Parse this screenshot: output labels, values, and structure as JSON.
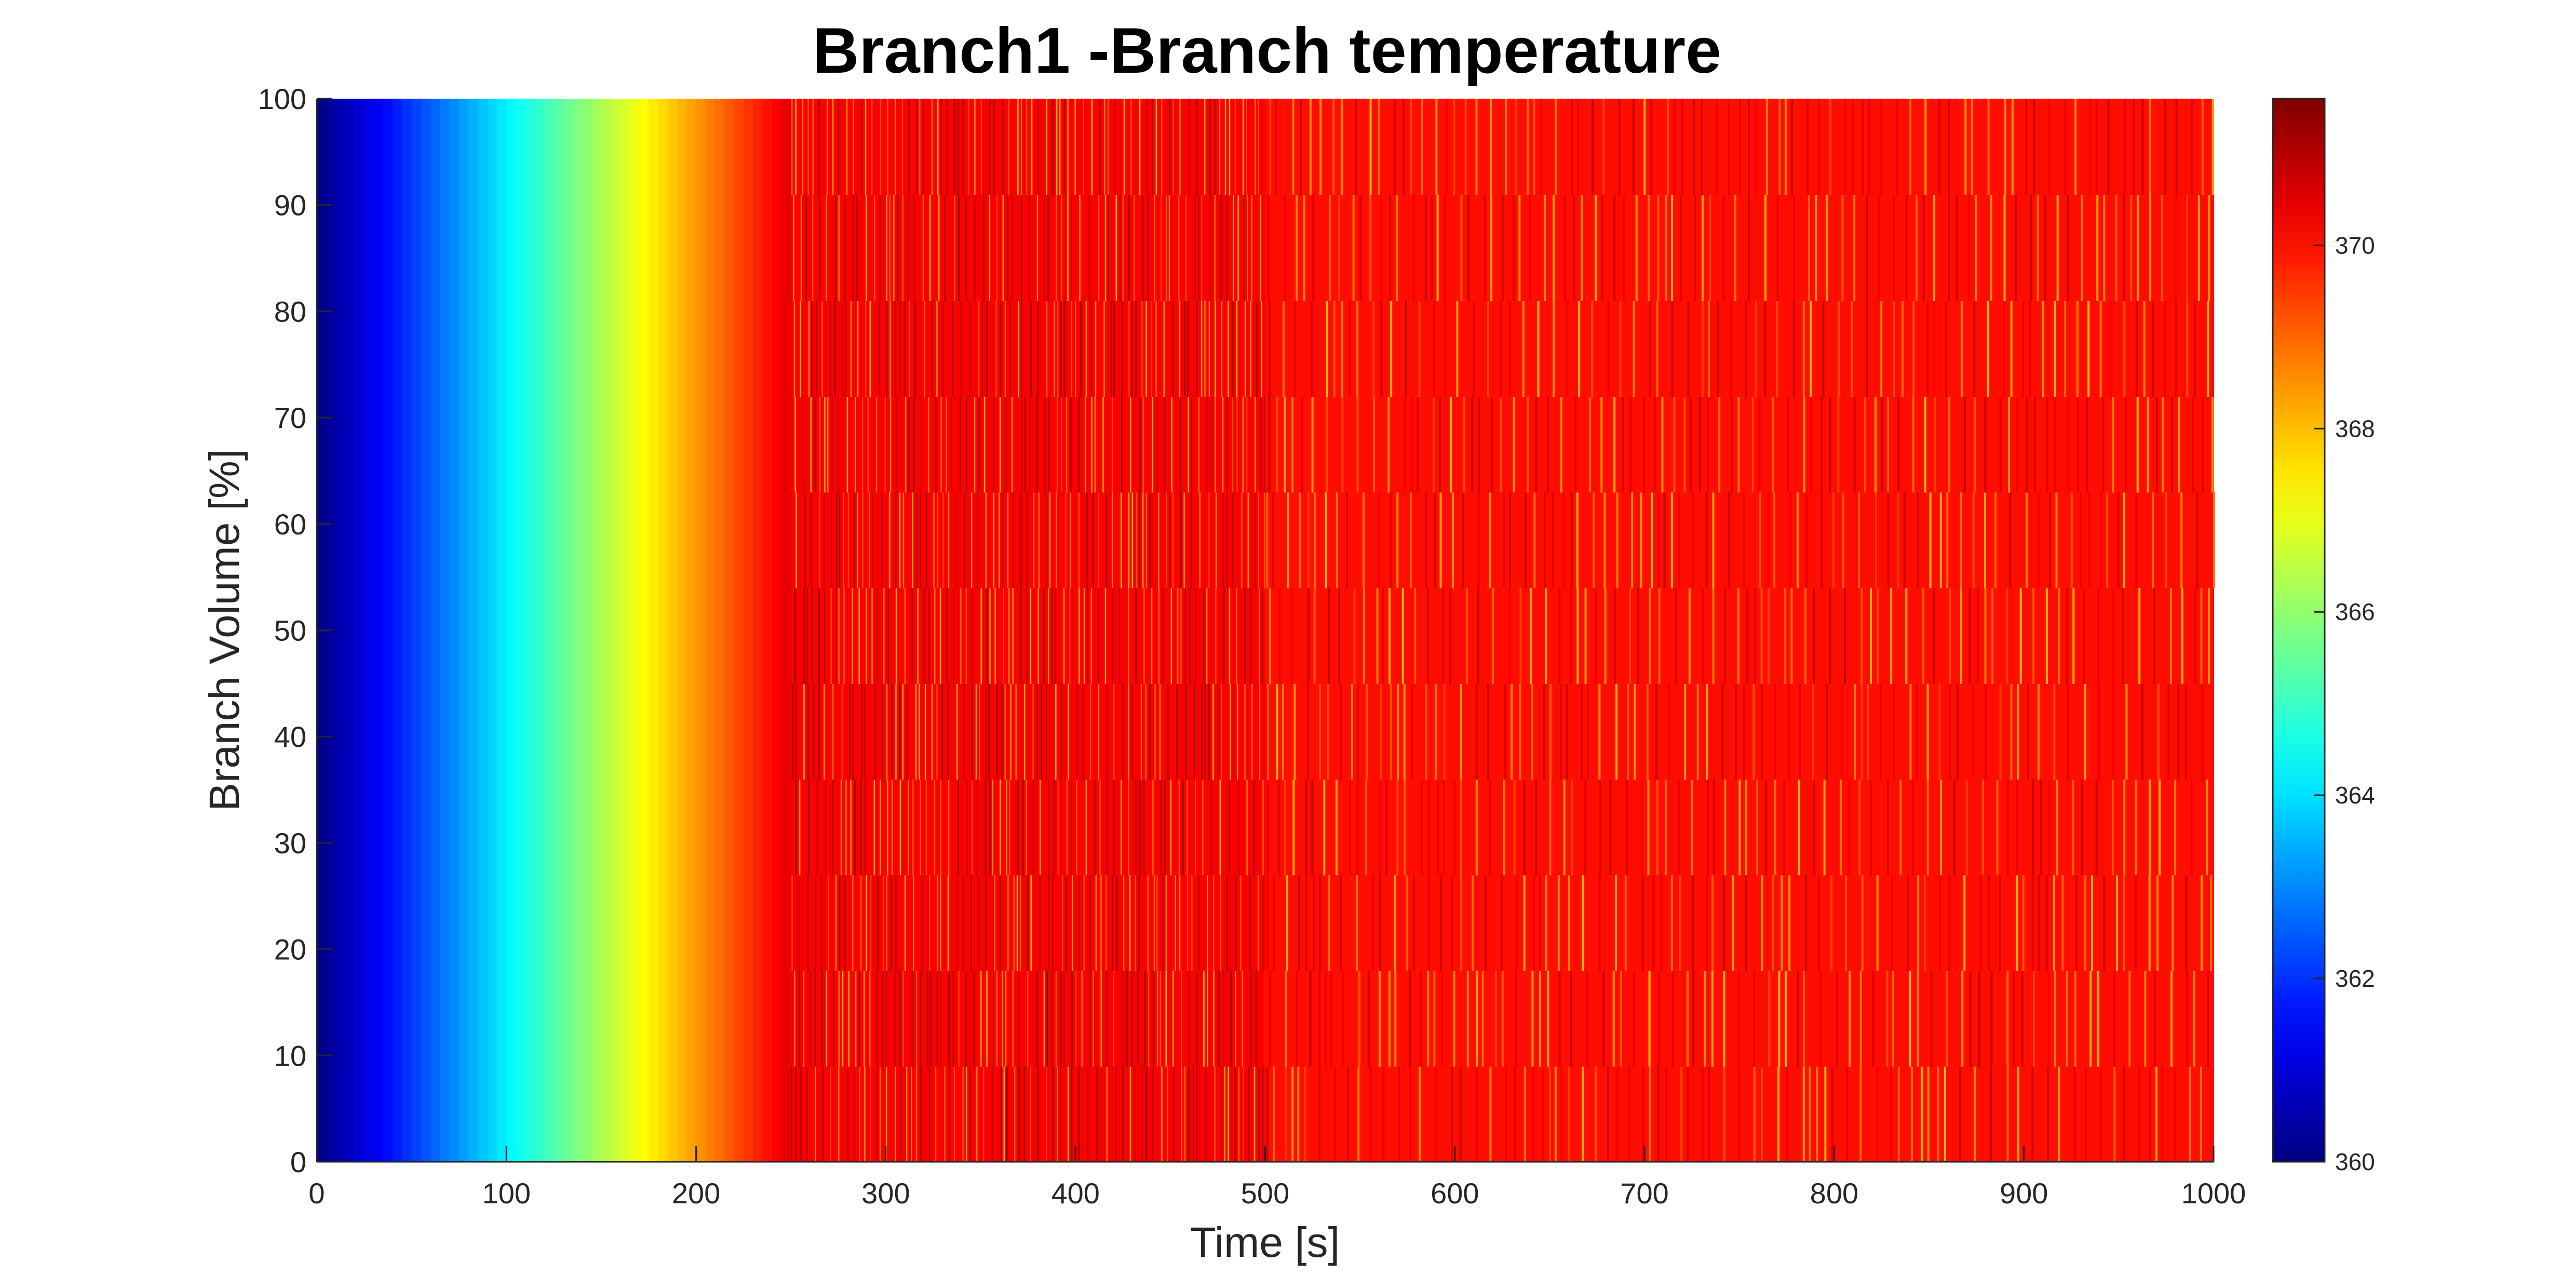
{
  "chart_data": {
    "type": "heatmap",
    "title": "Branch1 -Branch temperature",
    "xlabel": "Time [s]",
    "ylabel": "Branch Volume [%]",
    "xlim": [
      0,
      1000
    ],
    "ylim": [
      0,
      100
    ],
    "x_ticks": [
      0,
      100,
      200,
      300,
      400,
      500,
      600,
      700,
      800,
      900,
      1000
    ],
    "y_ticks": [
      0,
      10,
      20,
      30,
      40,
      50,
      60,
      70,
      80,
      90,
      100
    ],
    "colorbar": {
      "colormap": "jet",
      "clim": [
        360,
        371.6
      ],
      "ticks": [
        360,
        362,
        364,
        366,
        368,
        370
      ]
    },
    "volume_segments": [
      0,
      9,
      18,
      27,
      36,
      45,
      54,
      63,
      72,
      81,
      91,
      100
    ],
    "phases": [
      {
        "t_start": 0,
        "t_end": 250,
        "behavior": "uniform warm-up ramp",
        "value_start": 360.0,
        "value_end": 370.5
      },
      {
        "t_start": 250,
        "t_end": 500,
        "behavior": "fast oscillation",
        "value_base": 370.2,
        "value_min": 368.0,
        "value_max": 371.5
      },
      {
        "t_start": 500,
        "t_end": 1000,
        "behavior": "slower oscillation",
        "value_base": 370.0,
        "value_min": 368.0,
        "value_max": 370.8
      }
    ]
  },
  "colors": {
    "axis": "#262626",
    "background": "#ffffff"
  }
}
